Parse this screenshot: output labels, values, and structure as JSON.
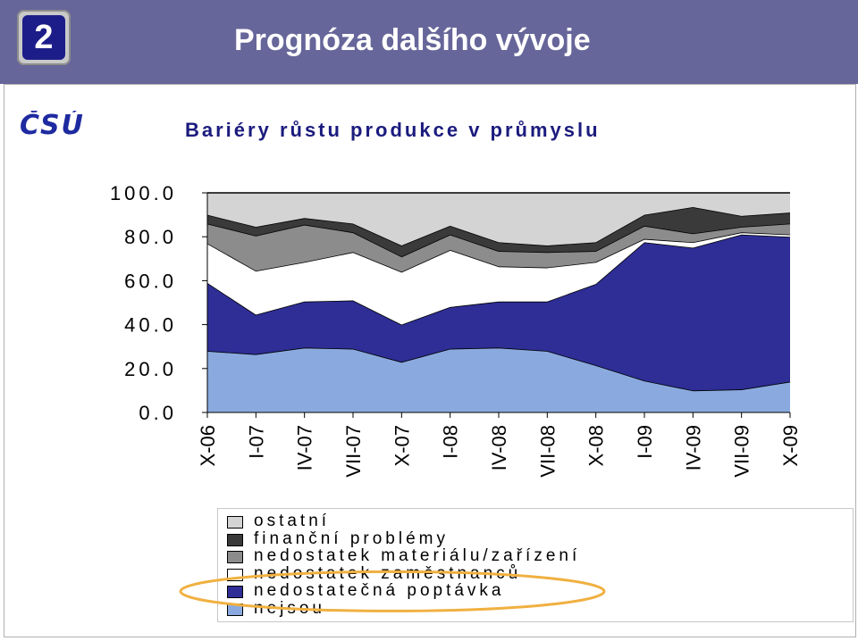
{
  "header": {
    "badge": "2",
    "title": "Prognóza dalšího vývoje"
  },
  "logo": {
    "text": "ČSÚ"
  },
  "chart_data": {
    "type": "area",
    "stacked": true,
    "title": "Bariéry růstu produkce v průmyslu",
    "categories": [
      "X-06",
      "I-07",
      "IV-07",
      "VII-07",
      "X-07",
      "I-08",
      "IV-08",
      "VII-08",
      "X-08",
      "I-09",
      "IV-09",
      "VII-09",
      "X-09"
    ],
    "ylim": [
      0,
      100
    ],
    "yticks": [
      "100.0",
      "80.0",
      "60.0",
      "40.0",
      "20.0",
      "0.0"
    ],
    "series": [
      {
        "name": "nejsou",
        "color": "#8aaadf",
        "values": [
          28,
          26.5,
          29.5,
          29,
          23,
          29,
          29.5,
          28,
          21.5,
          14.5,
          10,
          10.5,
          14
        ]
      },
      {
        "name": "nedostatečná poptávka",
        "color": "#2e2e96",
        "values": [
          31,
          18,
          21,
          22,
          17,
          19,
          21,
          22.5,
          37,
          63,
          65,
          70.5,
          66
        ]
      },
      {
        "name": "nedostatek zaměstnanců",
        "color": "#ffffff",
        "values": [
          18,
          20,
          18,
          22,
          24,
          26,
          16,
          15.5,
          10,
          1.5,
          2.5,
          1,
          1
        ]
      },
      {
        "name": "nedostatek materiálu/zařízení",
        "color": "#8c8c8c",
        "values": [
          9,
          16,
          17,
          9,
          7,
          7,
          7,
          7,
          5,
          6,
          4,
          2.5,
          5
        ]
      },
      {
        "name": "finanční problémy",
        "color": "#3a3a3a",
        "values": [
          4,
          4,
          3,
          4,
          5,
          4,
          4,
          3,
          4,
          5,
          12,
          5,
          5
        ]
      },
      {
        "name": "ostatní",
        "color": "#d4d4d4",
        "values": [
          10,
          15.5,
          11.5,
          14,
          24,
          15,
          22.5,
          24,
          22.5,
          10,
          6.5,
          10.5,
          9
        ]
      }
    ],
    "legend_order": [
      "ostatní",
      "finanční problémy",
      "nedostatek materiálu/zařízení",
      "nedostatek zaměstnanců",
      "nedostatečná poptávka",
      "nejsou"
    ],
    "legend_position": "bottom",
    "highlight": "nedostatečná poptávka",
    "highlight_color": "#f0b040"
  }
}
